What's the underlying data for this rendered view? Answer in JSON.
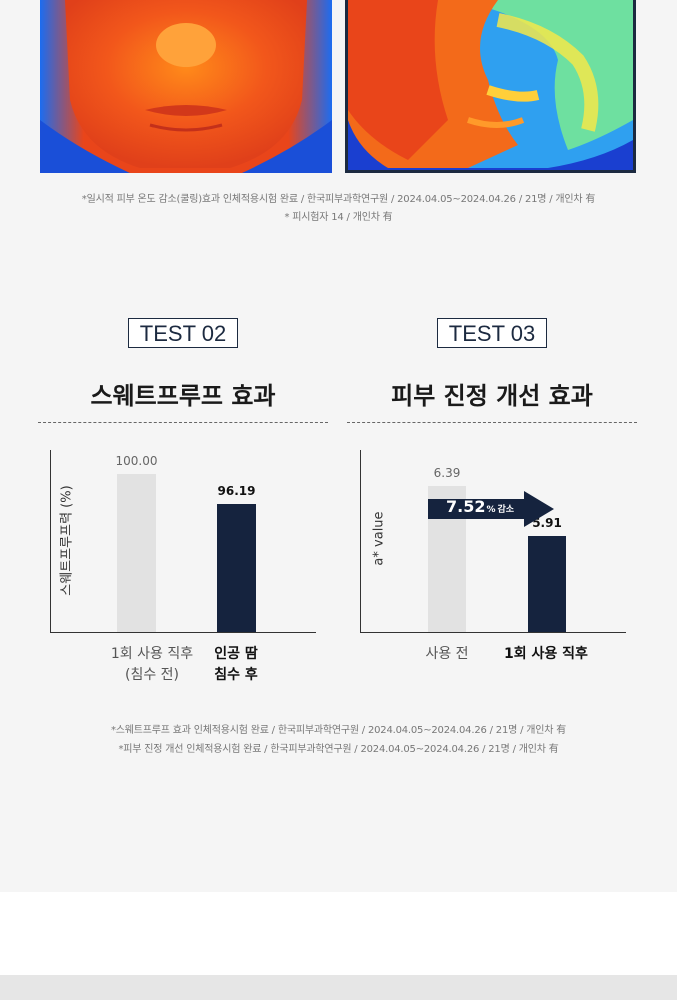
{
  "thermal_note": {
    "line1": "*일시적 피부 온도 감소(쿨링)효과 인체적용시험 완료 / 한국피부과학연구원 / 2024.04.05~2024.04.26 / 21명 / 개인차 有",
    "line2": "* 피시험자 14 / 개인차 有"
  },
  "tests": [
    {
      "badge": "TEST 02",
      "title": "스웨트프루프 효과",
      "ylabel": "스웨트프루프력 (%)",
      "bars": [
        {
          "value_label": "100.00",
          "category_line1": "1회 사용 직후",
          "category_line2": "(침수 전)"
        },
        {
          "value_label": "96.19",
          "category_line1": "인공 땀",
          "category_line2": "침수 후"
        }
      ]
    },
    {
      "badge": "TEST 03",
      "title": "피부 진정 개선 효과",
      "ylabel": "a* value",
      "bars": [
        {
          "value_label": "6.39",
          "category_line1": "사용 전"
        },
        {
          "value_label": "5.91",
          "category_line1": "1회 사용 직후"
        }
      ],
      "arrow": {
        "number": "7.52",
        "unit": "%",
        "word": "감소"
      }
    }
  ],
  "chart_data": [
    {
      "type": "bar",
      "title": "스웨트프루프 효과",
      "xlabel": "",
      "ylabel": "스웨트프루프력 (%)",
      "categories": [
        "1회 사용 직후 (침수 전)",
        "인공 땀 침수 후"
      ],
      "values": [
        100.0,
        96.19
      ],
      "colors": [
        "#e2e2e2",
        "#15233e"
      ]
    },
    {
      "type": "bar",
      "title": "피부 진정 개선 효과",
      "xlabel": "",
      "ylabel": "a* value",
      "categories": [
        "사용 전",
        "1회 사용 직후"
      ],
      "values": [
        6.39,
        5.91
      ],
      "annotation": "7.52% 감소",
      "colors": [
        "#e2e2e2",
        "#15233e"
      ]
    }
  ],
  "test_notes": {
    "line1": "*스웨트프루프 효과 인체적용시험 완료 / 한국피부과학연구원 / 2024.04.05~2024.04.26 / 21명 / 개인차 有",
    "line2": "*피부 진정 개선 인체적용시험 완료 / 한국피부과학연구원 / 2024.04.05~2024.04.26 / 21명 / 개인차 有"
  },
  "colors": {
    "accent_dark": "#15233e",
    "bar_light": "#e2e2e2",
    "panel_bg": "#f5f5f5"
  }
}
